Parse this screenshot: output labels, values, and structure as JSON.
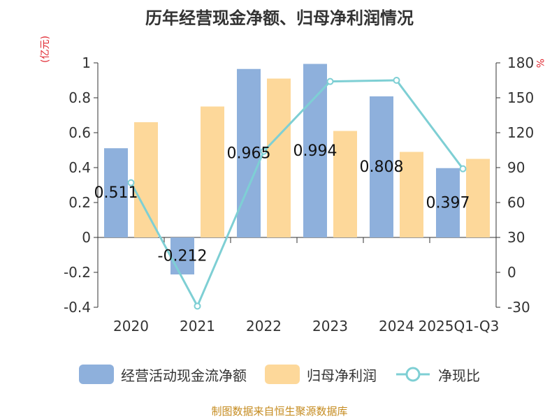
{
  "chart_data": {
    "type": "bar+line",
    "title": "历年经营现金净额、归母净利润情况",
    "left_axis_unit": "(亿元)",
    "right_axis_unit": "%",
    "categories": [
      "2020",
      "2021",
      "2022",
      "2023",
      "2024",
      "2025Q1-Q3"
    ],
    "left_ylim": [
      -0.4,
      1
    ],
    "left_ticks": [
      -0.4,
      -0.2,
      0,
      0.2,
      0.4,
      0.6,
      0.8,
      1
    ],
    "left_tick_labels": [
      "-0.4",
      "-0.2",
      "0",
      "0.2",
      "0.4",
      "0.6",
      "0.8",
      "1"
    ],
    "right_ylim": [
      -30,
      180
    ],
    "right_ticks": [
      -30,
      0,
      30,
      60,
      90,
      120,
      150,
      180
    ],
    "right_tick_labels": [
      "-30",
      "0",
      "30",
      "60",
      "90",
      "120",
      "150",
      "180"
    ],
    "series": [
      {
        "name": "经营活动现金流净额",
        "kind": "bar",
        "axis": "left",
        "color": "#8eb0dc",
        "values": [
          0.511,
          -0.212,
          0.965,
          0.994,
          0.808,
          0.397
        ],
        "labels": [
          "0.511",
          "-0.212",
          "0.965",
          "0.994",
          "0.808",
          "0.397"
        ]
      },
      {
        "name": "归母净利润",
        "kind": "bar",
        "axis": "left",
        "color": "#fdd89a",
        "values": [
          0.66,
          0.75,
          0.91,
          0.61,
          0.49,
          0.45
        ]
      },
      {
        "name": "净现比",
        "kind": "line",
        "axis": "right",
        "color": "#7ecfd4",
        "values": [
          77,
          -29,
          104,
          164,
          165,
          89
        ]
      }
    ]
  },
  "legend": {
    "item1": "经营活动现金流净额",
    "item2": "归母净利润",
    "item3": "净现比"
  },
  "source": "制图数据来自恒生聚源数据库"
}
